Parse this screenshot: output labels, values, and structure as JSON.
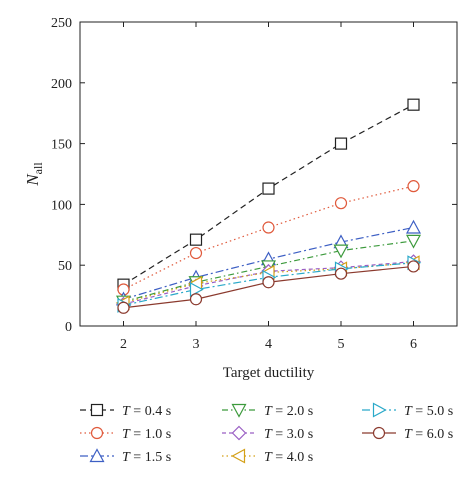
{
  "chart_data": {
    "type": "line",
    "xlabel": "Target ductility",
    "ylabel_main": "N",
    "ylabel_sub": "all",
    "x": [
      2,
      3,
      4,
      5,
      6
    ],
    "xlim": [
      1.4,
      6.6
    ],
    "ylim": [
      0,
      250
    ],
    "xticks": [
      2,
      3,
      4,
      5,
      6
    ],
    "yticks": [
      0,
      50,
      100,
      150,
      200,
      250
    ],
    "grid": false,
    "legend_position": "bottom",
    "series": [
      {
        "name_var": "T",
        "name_value": " = 0.4 s",
        "color": "#222222",
        "dash": "6,4",
        "marker": "square",
        "values": [
          34,
          71,
          113,
          150,
          182
        ]
      },
      {
        "name_var": "T",
        "name_value": " = 1.0 s",
        "color": "#e05a3c",
        "dash": "1.5,3",
        "marker": "circle",
        "values": [
          30,
          60,
          81,
          101,
          115
        ]
      },
      {
        "name_var": "T",
        "name_value": " = 1.5 s",
        "color": "#3d5fc4",
        "dash": "8,3,2,3",
        "marker": "triangle-up",
        "values": [
          22,
          40,
          55,
          69,
          81
        ]
      },
      {
        "name_var": "T",
        "name_value": " = 2.0 s",
        "color": "#3c9a3c",
        "dash": "6,3,1.5,3",
        "marker": "triangle-down",
        "values": [
          20,
          36,
          49,
          62,
          70
        ]
      },
      {
        "name_var": "T",
        "name_value": " = 3.0 s",
        "color": "#9a5fc4",
        "dash": "4,3",
        "marker": "diamond",
        "values": [
          18,
          33,
          45,
          48,
          53
        ]
      },
      {
        "name_var": "T",
        "name_value": " = 4.0 s",
        "color": "#d4a017",
        "dash": "1.5,3",
        "marker": "triangle-left",
        "values": [
          19,
          35,
          44,
          47,
          52
        ]
      },
      {
        "name_var": "T",
        "name_value": " = 5.0 s",
        "color": "#2aa9c9",
        "dash": "8,3,2,3",
        "marker": "triangle-right",
        "values": [
          17,
          30,
          40,
          47,
          52
        ]
      },
      {
        "name_var": "T",
        "name_value": " = 6.0 s",
        "color": "#8b3a2e",
        "dash": "",
        "marker": "circle",
        "values": [
          15,
          22,
          36,
          43,
          49
        ]
      }
    ]
  }
}
